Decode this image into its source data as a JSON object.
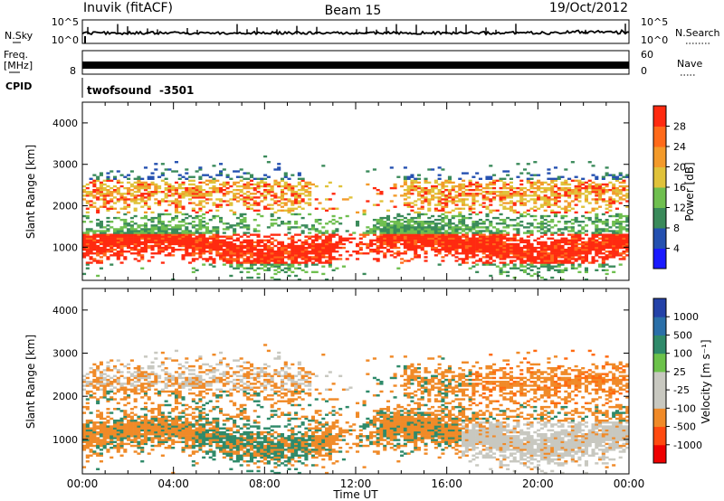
{
  "header": {
    "station": "Inuvik (fitACF)",
    "beam": "Beam 15",
    "date": "19/Oct/2012"
  },
  "panels": {
    "nsky": {
      "left_label": "N.Sky",
      "right_label": "N.Search",
      "ticks_left": [
        "10^5",
        "10^0"
      ],
      "ticks_right": [
        "10^5",
        "10^0"
      ]
    },
    "freq": {
      "left_label_1": "Freq.",
      "left_label_2": "[MHz]",
      "left_tick_top": "",
      "left_tick_bottom": "8",
      "right_label": "Nave",
      "right_tick_top": "60",
      "right_tick_bottom": "0"
    },
    "cpid": {
      "label": "CPID",
      "program": "twofsound",
      "id": "-3501"
    }
  },
  "colors": {
    "trace": "#000000",
    "frame": "#000000",
    "power_scale": [
      "#1a1aff",
      "#2450b0",
      "#3a8a5a",
      "#6fbf4f",
      "#e0c23a",
      "#f39a2a",
      "#ff6a1a",
      "#ff2a10",
      "#ee0000"
    ],
    "velocity_scale": [
      "#2442a8",
      "#2a6fa8",
      "#2f8a6a",
      "#6cc24a",
      "#c8c8c0",
      "#c0c0b8",
      "#f08a28",
      "#ff6a10",
      "#ff3a0a",
      "#ee0000"
    ]
  },
  "chart_data": [
    {
      "type": "heatmap",
      "title": "",
      "xlabel": "Time UT",
      "ylabel": "Slant Range [km]",
      "x_ticks": [
        "00:00",
        "04:00",
        "08:00",
        "12:00",
        "16:00",
        "20:00",
        "00:00"
      ],
      "y_ticks": [
        "1000",
        "2000",
        "3000",
        "4000"
      ],
      "ylim": [
        200,
        4500
      ],
      "colorbar": {
        "label": "Power [dB]",
        "ticks": [
          "4",
          "8",
          "12",
          "16",
          "20",
          "24",
          "28"
        ]
      }
    },
    {
      "type": "heatmap",
      "title": "",
      "xlabel": "Time UT",
      "ylabel": "Slant Range [km]",
      "x_ticks": [
        "00:00",
        "04:00",
        "08:00",
        "12:00",
        "16:00",
        "20:00",
        "00:00"
      ],
      "y_ticks": [
        "1000",
        "2000",
        "3000",
        "4000"
      ],
      "ylim": [
        200,
        4500
      ],
      "colorbar": {
        "label": "Velocity [m s⁻¹]",
        "ticks": [
          "1000",
          "500",
          "100",
          "25",
          "-25",
          "-100",
          "-500",
          "-1000"
        ]
      }
    }
  ]
}
